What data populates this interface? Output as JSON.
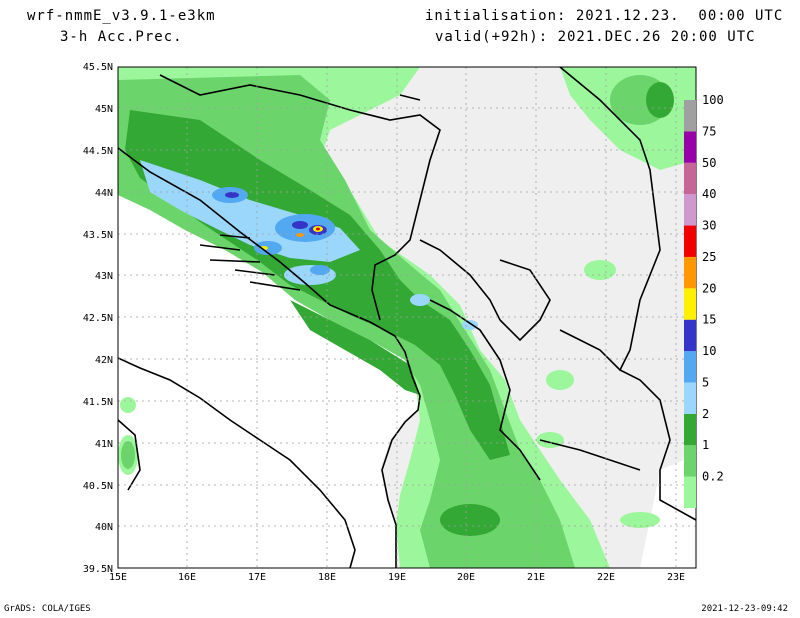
{
  "header": {
    "model": "wrf-nmmE_v3.9.1-e3km",
    "field": "3-h Acc.Prec.",
    "init": "initialisation: 2021.12.23.  00:00 UTC",
    "valid": "valid(+92h): 2021.DEC.26 20:00 UTC"
  },
  "footer": {
    "credit": "GrADS: COLA/IGES",
    "stamp": "2021-12-23-09:42"
  },
  "map": {
    "lat_labels": [
      "45.5N",
      "45N",
      "44.5N",
      "44N",
      "43.5N",
      "43N",
      "42.5N",
      "42N",
      "41.5N",
      "41N",
      "40.5N",
      "40N",
      "39.5N"
    ],
    "lon_labels": [
      "15E",
      "16E",
      "17E",
      "18E",
      "19E",
      "20E",
      "21E",
      "22E",
      "23E"
    ],
    "colors": {
      "land": "#efefef",
      "sea": "#ffffff"
    }
  },
  "legend": {
    "levels": [
      {
        "label": "0.2",
        "color": "#9cf79c"
      },
      {
        "label": "1",
        "color": "#6bd56b"
      },
      {
        "label": "2",
        "color": "#34a834"
      },
      {
        "label": "5",
        "color": "#9ad7fb"
      },
      {
        "label": "10",
        "color": "#52a9f2"
      },
      {
        "label": "15",
        "color": "#3434c8"
      },
      {
        "label": "20",
        "color": "#fff000"
      },
      {
        "label": "25",
        "color": "#ff9800"
      },
      {
        "label": "30",
        "color": "#f00000"
      },
      {
        "label": "40",
        "color": "#cf98cf"
      },
      {
        "label": "50",
        "color": "#c56598"
      },
      {
        "label": "75",
        "color": "#9800a8"
      },
      {
        "label": "100",
        "color": "#a0a0a0"
      }
    ]
  }
}
